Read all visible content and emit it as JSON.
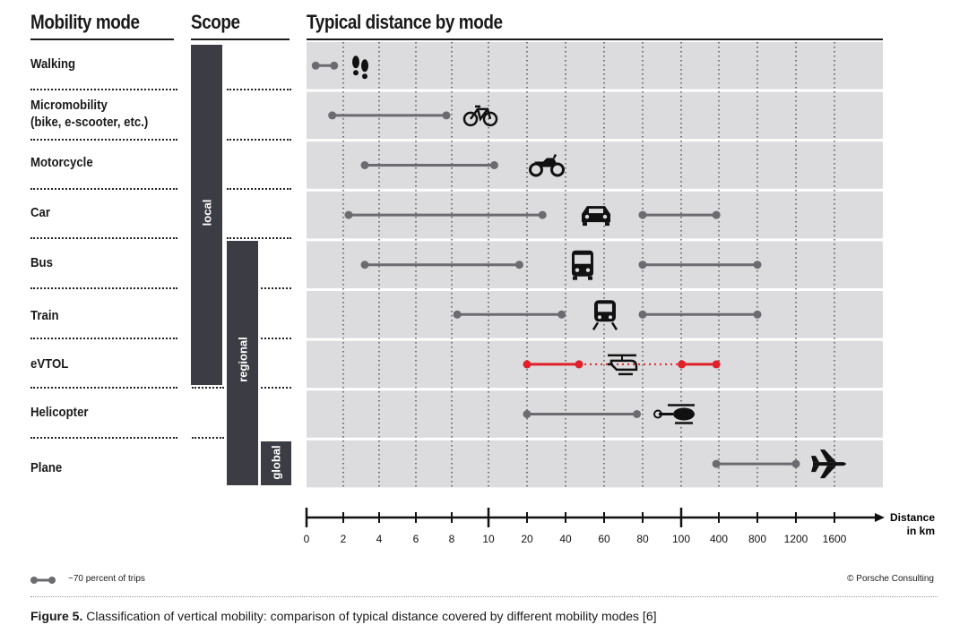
{
  "headers": {
    "mode": "Mobility mode",
    "scope": "Scope",
    "distance": "Typical distance by mode"
  },
  "modes": [
    {
      "label": "Walking"
    },
    {
      "label": "Micromobility",
      "sub": "(bike, e-scooter, etc.)"
    },
    {
      "label": "Motorcycle"
    },
    {
      "label": "Car"
    },
    {
      "label": "Bus"
    },
    {
      "label": "Train"
    },
    {
      "label": "eVTOL"
    },
    {
      "label": "Helicopter"
    },
    {
      "label": "Plane"
    }
  ],
  "scopes": [
    {
      "label": "local",
      "from_row": 0,
      "to_row": 6
    },
    {
      "label": "regional",
      "from_row": 4,
      "to_row": 8
    },
    {
      "label": "global",
      "from_row": 8,
      "to_row": 8
    }
  ],
  "chart_data": {
    "type": "range",
    "title": "Typical distance by mode",
    "xlabel": "Distance in km",
    "x_ticks": [
      "0",
      "2",
      "4",
      "6",
      "8",
      "10",
      "20",
      "40",
      "60",
      "80",
      "100",
      "400",
      "800",
      "1200",
      "1600"
    ],
    "segment_breaks": [
      "10",
      "100"
    ],
    "legend": "~70 percent of trips",
    "colors": {
      "normal": "#6b6b70",
      "highlight": "#e0202a",
      "row_bg": "#dcdcde"
    },
    "series": [
      {
        "name": "Walking",
        "icon": "footprints-icon",
        "ranges": [
          [
            0.5,
            1.5
          ]
        ]
      },
      {
        "name": "Micromobility",
        "icon": "bicycle-icon",
        "ranges": [
          [
            1.4,
            7.7
          ]
        ]
      },
      {
        "name": "Motorcycle",
        "icon": "motorcycle-icon",
        "ranges": [
          [
            3.2,
            11.5
          ]
        ]
      },
      {
        "name": "Car",
        "icon": "car-icon",
        "ranges": [
          [
            2.3,
            28
          ],
          [
            80,
            380
          ]
        ]
      },
      {
        "name": "Bus",
        "icon": "bus-icon",
        "ranges": [
          [
            3.2,
            18
          ],
          [
            80,
            800
          ]
        ]
      },
      {
        "name": "Train",
        "icon": "train-icon",
        "ranges": [
          [
            8.3,
            38
          ],
          [
            80,
            800
          ]
        ]
      },
      {
        "name": "eVTOL",
        "icon": "evtol-icon",
        "highlight": true,
        "ranges": [
          [
            20,
            47
          ],
          [
            105,
            380
          ]
        ],
        "dotted_between": [
          47,
          105
        ]
      },
      {
        "name": "Helicopter",
        "icon": "helicopter-icon",
        "ranges": [
          [
            20,
            77
          ]
        ]
      },
      {
        "name": "Plane",
        "icon": "plane-icon",
        "ranges": [
          [
            380,
            1200
          ]
        ]
      }
    ]
  },
  "footer": {
    "legend_text": "~70 percent of trips",
    "copyright": "© Porsche Consulting",
    "caption_bold": "Figure 5.",
    "caption_text": " Classification of vertical mobility: comparison of typical distance covered by different mobility modes [6]"
  }
}
